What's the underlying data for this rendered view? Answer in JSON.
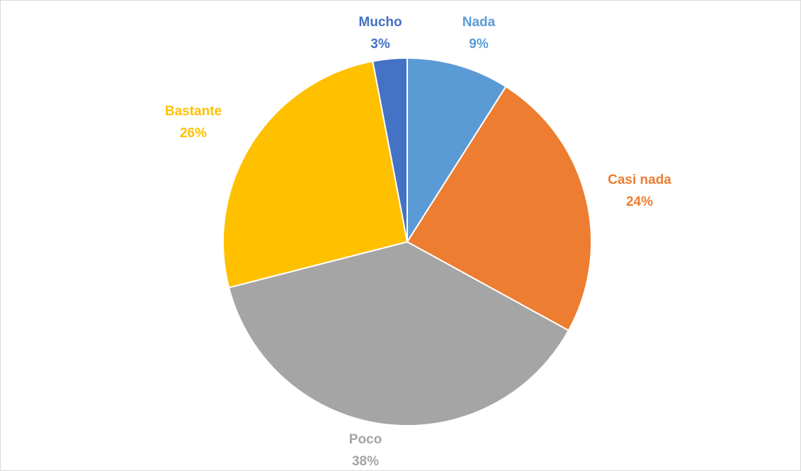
{
  "chart_data": {
    "type": "pie",
    "slices": [
      {
        "label": "Nada",
        "percent_label": "9%",
        "value": 9,
        "color": "#5b9bd5"
      },
      {
        "label": "Casi nada",
        "percent_label": "24%",
        "value": 24,
        "color": "#ed7d31"
      },
      {
        "label": "Poco",
        "percent_label": "38%",
        "value": 38,
        "color": "#a5a5a5"
      },
      {
        "label": "Bastante",
        "percent_label": "26%",
        "value": 26,
        "color": "#ffc000"
      },
      {
        "label": "Mucho",
        "percent_label": "3%",
        "value": 3,
        "color": "#4472c4"
      }
    ],
    "start_angle": "12 o'clock",
    "direction": "clockwise",
    "legend": "none",
    "data_labels": "outside"
  }
}
